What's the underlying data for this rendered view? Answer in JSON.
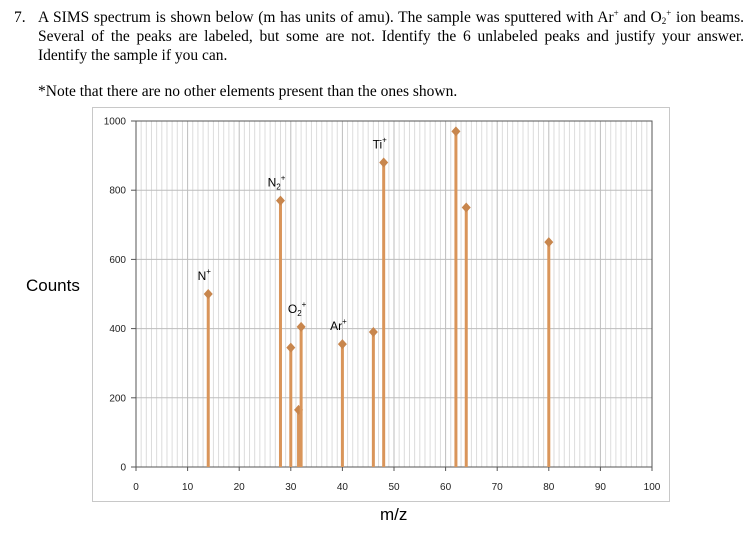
{
  "question": {
    "number": "7.",
    "text_part1": "A SIMS spectrum is shown below (m has units of amu). The sample was sputtered with Ar",
    "sup1": "+",
    "text_part2": " and O",
    "sub2": "2",
    "sup2": "+",
    "text_part3": " ion beams. Several of the peaks are labeled, but some are not. Identify the 6 unlabeled peaks and justify your answer. Identify the sample if you can."
  },
  "note": "*Note that there are no other elements present than the ones shown.",
  "colors": {
    "peak": "#d9955a",
    "peak_dark": "#c8864d",
    "grid_major": "#bdbdbd",
    "grid_minor": "#dcdcdc",
    "axis": "#555555"
  },
  "chart_data": {
    "type": "stem",
    "title": "",
    "xlabel": "m/z",
    "ylabel": "Counts",
    "xlim": [
      0,
      100
    ],
    "ylim": [
      0,
      1000
    ],
    "xticks": [
      0,
      10,
      20,
      30,
      40,
      50,
      60,
      70,
      80,
      90,
      100
    ],
    "yticks": [
      0,
      200,
      400,
      600,
      800,
      1000
    ],
    "grid": true,
    "peaks": [
      {
        "x": 14,
        "y": 500,
        "label": "N+",
        "label_base": "N",
        "label_sub": "",
        "label_sup": "+"
      },
      {
        "x": 28,
        "y": 770,
        "label": "N2+",
        "label_base": "N",
        "label_sub": "2",
        "label_sup": "+"
      },
      {
        "x": 30,
        "y": 345,
        "label": ""
      },
      {
        "x": 31.5,
        "y": 165,
        "label": ""
      },
      {
        "x": 32,
        "y": 405,
        "label": "O2+",
        "label_base": "O",
        "label_sub": "2",
        "label_sup": "+"
      },
      {
        "x": 40,
        "y": 355,
        "label": "Ar+",
        "label_base": "Ar",
        "label_sub": "",
        "label_sup": "+"
      },
      {
        "x": 46,
        "y": 390,
        "label": ""
      },
      {
        "x": 48,
        "y": 880,
        "label": "Ti+",
        "label_base": "Ti",
        "label_sub": "",
        "label_sup": "+"
      },
      {
        "x": 62,
        "y": 970,
        "label": ""
      },
      {
        "x": 64,
        "y": 750,
        "label": ""
      },
      {
        "x": 80,
        "y": 650,
        "label": ""
      }
    ]
  }
}
